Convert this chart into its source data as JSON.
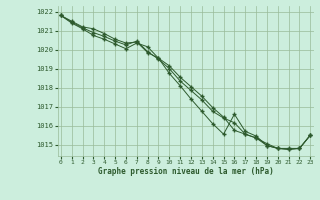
{
  "x": [
    0,
    1,
    2,
    3,
    4,
    5,
    6,
    7,
    8,
    9,
    10,
    11,
    12,
    13,
    14,
    15,
    16,
    17,
    18,
    19,
    20,
    21,
    22,
    23
  ],
  "series1": [
    1021.8,
    1021.5,
    1021.2,
    1021.1,
    1020.85,
    1020.55,
    1020.35,
    1020.4,
    1019.85,
    1019.55,
    1019.15,
    1018.55,
    1018.05,
    1017.55,
    1016.95,
    1016.45,
    1015.75,
    1015.55,
    1015.35,
    1015.05,
    1014.8,
    1014.8,
    1014.8,
    1015.5
  ],
  "series2": [
    1021.8,
    1021.4,
    1021.1,
    1020.75,
    1020.55,
    1020.3,
    1020.05,
    1020.35,
    1020.15,
    1019.55,
    1018.75,
    1018.1,
    1017.4,
    1016.75,
    1016.1,
    1015.55,
    1016.6,
    1015.7,
    1015.45,
    1014.95,
    1014.8,
    1014.75,
    1014.8,
    1015.5
  ],
  "series3": [
    1021.8,
    1021.45,
    1021.15,
    1020.9,
    1020.7,
    1020.45,
    1020.25,
    1020.45,
    1019.9,
    1019.5,
    1019.0,
    1018.35,
    1017.85,
    1017.35,
    1016.75,
    1016.4,
    1016.15,
    1015.55,
    1015.35,
    1014.95,
    1014.8,
    1014.75,
    1014.8,
    1015.5
  ],
  "line_color": "#2d5a2d",
  "marker_color": "#2d5a2d",
  "bg_color": "#cceedd",
  "grid_color": "#99bb99",
  "text_color": "#2d5a2d",
  "xlabel": "Graphe pression niveau de la mer (hPa)",
  "ylim_min": 1014.4,
  "ylim_max": 1022.3,
  "xlim_min": -0.3,
  "xlim_max": 23.3,
  "yticks": [
    1015,
    1016,
    1017,
    1018,
    1019,
    1020,
    1021,
    1022
  ],
  "xticks": [
    0,
    1,
    2,
    3,
    4,
    5,
    6,
    7,
    8,
    9,
    10,
    11,
    12,
    13,
    14,
    15,
    16,
    17,
    18,
    19,
    20,
    21,
    22,
    23
  ]
}
